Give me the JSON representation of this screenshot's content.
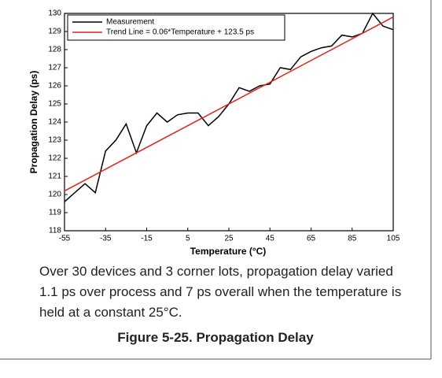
{
  "chart_data": {
    "type": "line",
    "xlabel": "Temperature (°C)",
    "ylabel": "Propagation Delay (ps)",
    "xlim": [
      -55,
      105
    ],
    "xticks": [
      -55,
      -35,
      -15,
      5,
      25,
      45,
      65,
      85,
      105
    ],
    "ylim": [
      118,
      130
    ],
    "yticks": [
      118,
      119,
      120,
      121,
      122,
      123,
      124,
      125,
      126,
      127,
      128,
      129,
      130
    ],
    "legend": "upper left",
    "series": [
      {
        "name": "Measurement",
        "color": "#000000",
        "x": [
          -55,
          -45,
          -40,
          -35,
          -30,
          -25,
          -20,
          -15,
          -10,
          -5,
          0,
          5,
          10,
          15,
          20,
          25,
          30,
          35,
          40,
          45,
          50,
          55,
          60,
          65,
          70,
          75,
          80,
          85,
          90,
          95,
          100,
          105
        ],
        "values": [
          119.6,
          120.6,
          120.1,
          122.4,
          123.0,
          123.9,
          122.3,
          123.8,
          124.5,
          124.0,
          124.4,
          124.5,
          124.5,
          123.8,
          124.3,
          125.0,
          125.9,
          125.7,
          126.0,
          126.1,
          127.0,
          126.9,
          127.6,
          127.9,
          128.1,
          128.2,
          128.8,
          128.7,
          128.9,
          130.0,
          129.3,
          129.1
        ]
      },
      {
        "name": "Trend Line = 0.06*Temperature + 123.5 ps",
        "color": "#e3241b",
        "x": [
          -55,
          105
        ],
        "values": [
          120.2,
          129.8
        ]
      }
    ],
    "caption_lines": [
      "Over 30 devices and 3 corner lots, propagation delay varied",
      "1.1 ps over process and 7 ps overall when the temperature is",
      "held at a constant 25°C."
    ],
    "figure_title": "Figure 5-25. Propagation Delay"
  }
}
